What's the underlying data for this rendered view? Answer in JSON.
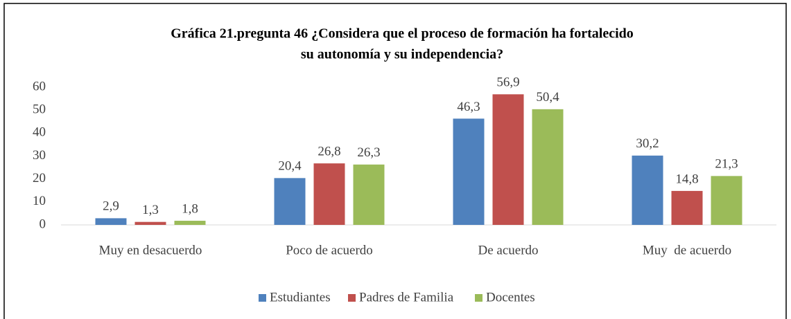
{
  "chart_data": {
    "type": "bar",
    "title": [
      "Gráfica 21.pregunta 46 ¿Considera que el proceso de formación ha fortalecido",
      "su autonomía y su independencia?"
    ],
    "categories": [
      "Muy en desacuerdo",
      "Poco de acuerdo",
      "De acuerdo",
      "Muy  de acuerdo"
    ],
    "series": [
      {
        "name": "Estudiantes",
        "color": "#4f81bd",
        "values": [
          2.9,
          20.4,
          46.3,
          30.2
        ],
        "value_labels": [
          "2,9",
          "20,4",
          "46,3",
          "30,2"
        ]
      },
      {
        "name": "Padres de Familia",
        "color": "#c0504d",
        "values": [
          1.3,
          26.8,
          56.9,
          14.8
        ],
        "value_labels": [
          "1,3",
          "26,8",
          "56,9",
          "14,8"
        ]
      },
      {
        "name": "Docentes",
        "color": "#9bbb59",
        "values": [
          1.8,
          26.3,
          50.4,
          21.3
        ],
        "value_labels": [
          "1,8",
          "26,3",
          "50,4",
          "21,3"
        ]
      }
    ],
    "ylim": [
      0,
      60
    ],
    "yticks": [
      0,
      10,
      20,
      30,
      40,
      50,
      60
    ],
    "grid": false,
    "legend": "bottom"
  }
}
